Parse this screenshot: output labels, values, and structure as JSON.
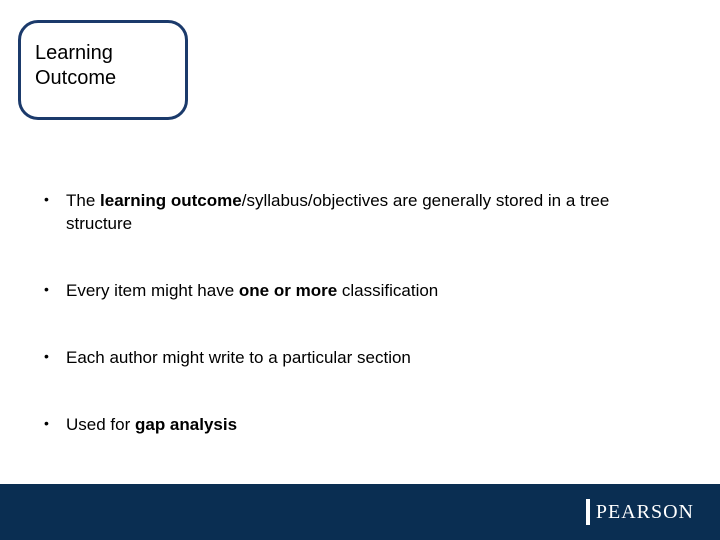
{
  "colors": {
    "title_border": "#1b3a6b",
    "footer_bg": "#0a2e52",
    "text": "#000000",
    "logo_text": "#ffffff"
  },
  "title": {
    "line1": "Learning",
    "line2": "Outcome"
  },
  "bullets": [
    {
      "segments": [
        {
          "text": "The ",
          "bold": false
        },
        {
          "text": "learning outcome",
          "bold": true
        },
        {
          "text": "/syllabus/objectives are generally stored in a tree structure",
          "bold": false
        }
      ]
    },
    {
      "segments": [
        {
          "text": "Every item might have ",
          "bold": false
        },
        {
          "text": "one or more",
          "bold": true
        },
        {
          "text": " classification",
          "bold": false
        }
      ]
    },
    {
      "segments": [
        {
          "text": "Each author might write to a particular section",
          "bold": false
        }
      ]
    },
    {
      "segments": [
        {
          "text": "Used for ",
          "bold": false
        },
        {
          "text": "gap analysis",
          "bold": true
        }
      ]
    }
  ],
  "footer": {
    "logo_text": "PEARSON"
  }
}
